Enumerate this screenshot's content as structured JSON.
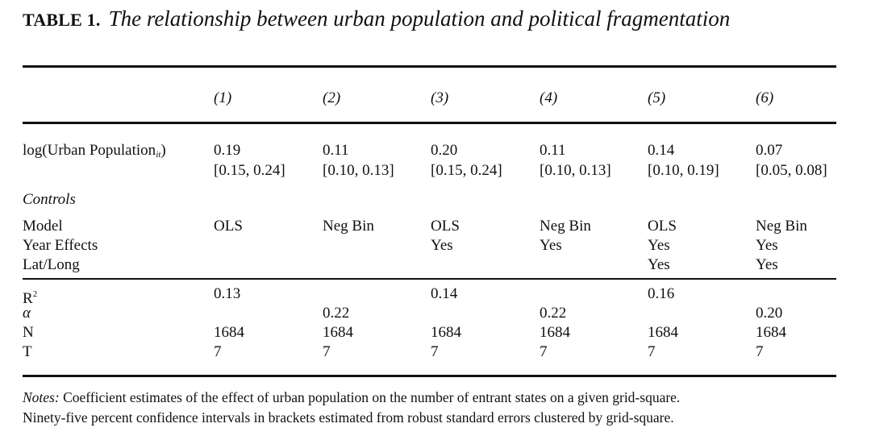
{
  "title": {
    "label": "TABLE 1.",
    "text": "The relationship between urban population and political fragmentation"
  },
  "columns": [
    "(1)",
    "(2)",
    "(3)",
    "(4)",
    "(5)",
    "(6)"
  ],
  "coef_row": {
    "label_prefix": "log(Urban Population",
    "label_sub": "it",
    "label_suffix": ")",
    "estimates": [
      "0.19",
      "0.11",
      "0.20",
      "0.11",
      "0.14",
      "0.07"
    ],
    "intervals": [
      "[0.15, 0.24]",
      "[0.10, 0.13]",
      "[0.15, 0.24]",
      "[0.10, 0.13]",
      "[0.10, 0.19]",
      "[0.05, 0.08]"
    ]
  },
  "controls_heading": "Controls",
  "control_rows": [
    {
      "label": "Model",
      "values": [
        "OLS",
        "Neg Bin",
        "OLS",
        "Neg Bin",
        "OLS",
        "Neg Bin"
      ]
    },
    {
      "label": "Year Effects",
      "values": [
        "",
        "",
        "Yes",
        "Yes",
        "Yes",
        "Yes"
      ]
    },
    {
      "label": "Lat/Long",
      "values": [
        "",
        "",
        "",
        "",
        "Yes",
        "Yes"
      ]
    }
  ],
  "stat_rows": [
    {
      "label": "R",
      "label_sup": "2",
      "values": [
        "0.13",
        "",
        "0.14",
        "",
        "0.16",
        ""
      ]
    },
    {
      "label": "α",
      "values": [
        "",
        "0.22",
        "",
        "0.22",
        "",
        "0.20"
      ]
    },
    {
      "label": "N",
      "values": [
        "1684",
        "1684",
        "1684",
        "1684",
        "1684",
        "1684"
      ]
    },
    {
      "label": "T",
      "values": [
        "7",
        "7",
        "7",
        "7",
        "7",
        "7"
      ]
    }
  ],
  "notes": {
    "label": "Notes:",
    "line1": "Coefficient estimates of the effect of urban population on the number of entrant states on a given grid-square.",
    "line2": "Ninety-five percent confidence intervals in brackets estimated from robust standard errors clustered by grid-square."
  }
}
